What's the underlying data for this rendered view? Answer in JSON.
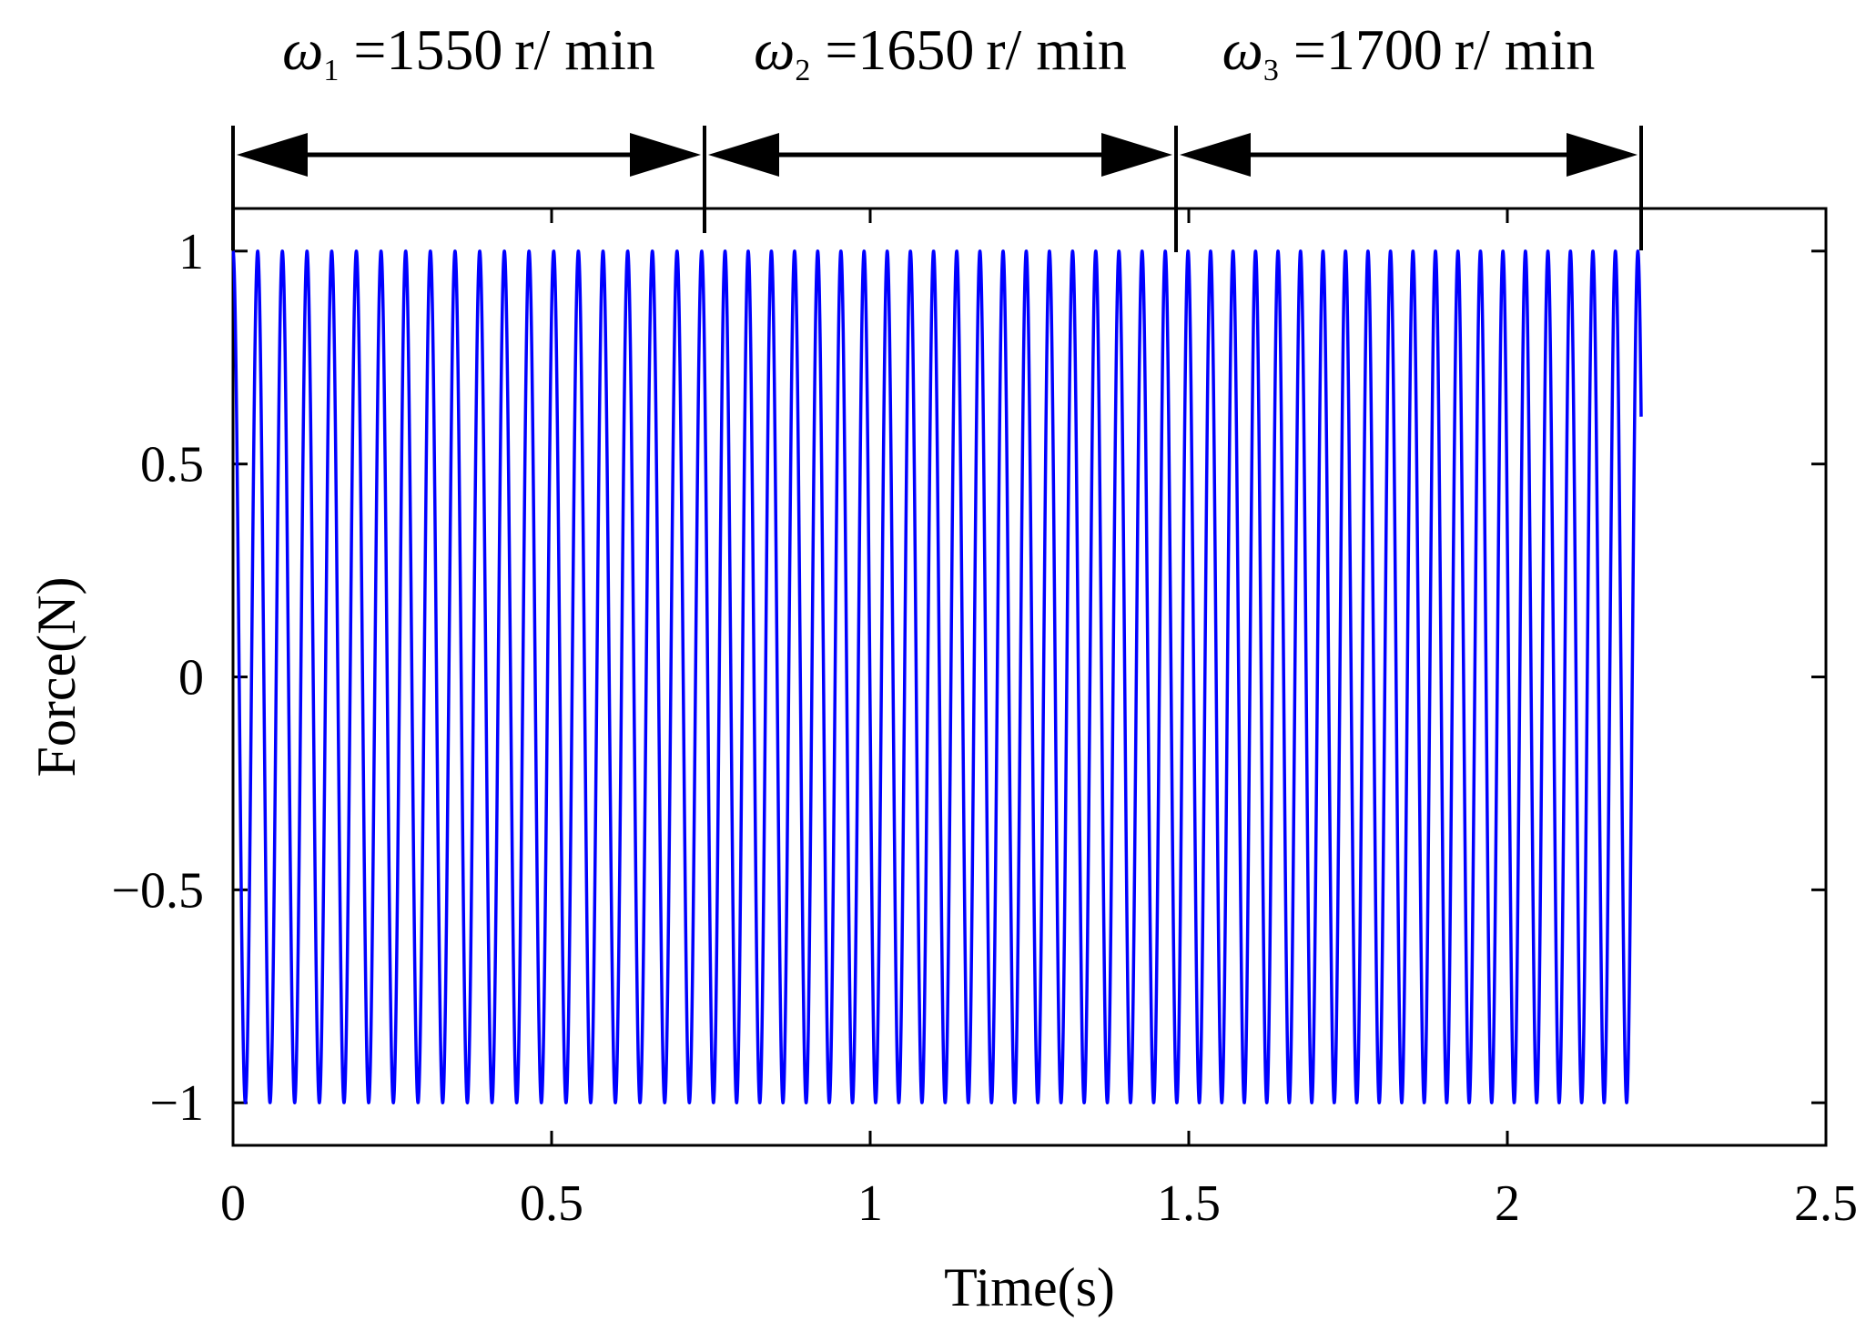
{
  "chart_data": {
    "type": "line",
    "xlabel": "Time(s)",
    "ylabel": "Force(N)",
    "xlim": [
      0,
      2.5
    ],
    "ylim": [
      -1.1,
      1.1
    ],
    "xticks": [
      "0",
      "0.5",
      "1",
      "1.5",
      "2",
      "2.5"
    ],
    "xtick_values": [
      0,
      0.5,
      1,
      1.5,
      2,
      2.5
    ],
    "yticks": [
      "1",
      "0.5",
      "0",
      "−0.5",
      "−1"
    ],
    "ytick_values": [
      1,
      0.5,
      0,
      -0.5,
      -1
    ],
    "grid": false,
    "line_color": "#0000ff",
    "series": [
      {
        "signal": "sine",
        "amplitude": 1,
        "t_end": 2.21,
        "segments": [
          {
            "t_start": 0,
            "t_end": 0.74,
            "frequency_hz": 25.83
          },
          {
            "t_start": 0.74,
            "t_end": 1.48,
            "frequency_hz": 27.5
          },
          {
            "t_start": 1.48,
            "t_end": 2.21,
            "frequency_hz": 28.33
          }
        ]
      }
    ],
    "annotations": [
      {
        "symbol": "ω",
        "subscript": "1",
        "text": " =1550 r/ min",
        "t_start": 0,
        "t_end": 0.74
      },
      {
        "symbol": "ω",
        "subscript": "2",
        "text": " =1650 r/ min",
        "t_start": 0.74,
        "t_end": 1.48
      },
      {
        "symbol": "ω",
        "subscript": "3",
        "text": " =1700 r/ min",
        "t_start": 1.48,
        "t_end": 2.21
      }
    ]
  },
  "colors": {
    "signal": "#0000ff",
    "axes": "#000000",
    "background": "#ffffff"
  }
}
